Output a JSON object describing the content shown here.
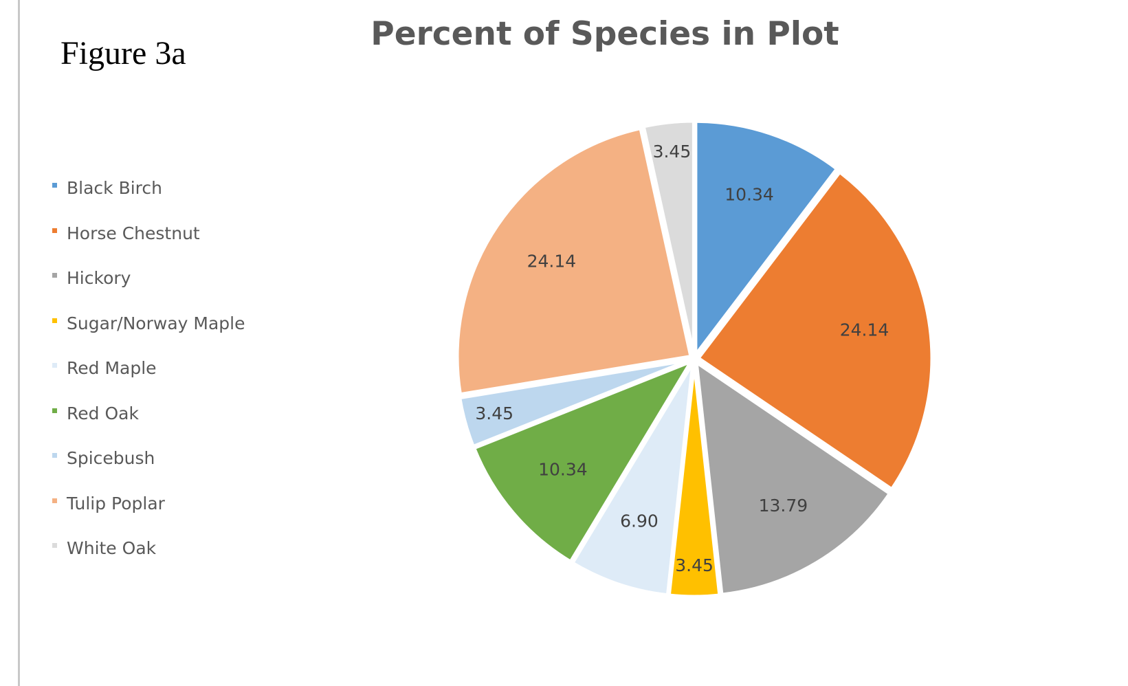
{
  "figure_label": "Figure 3a",
  "chart_data": {
    "type": "pie",
    "title": "Percent of Species in Plot",
    "legend_position": "left",
    "start_angle_deg": 0,
    "slices": [
      {
        "name": "Black Birch",
        "value": 10.34,
        "label": "10.34",
        "color": "#5b9bd5"
      },
      {
        "name": "Horse Chestnut",
        "value": 24.14,
        "label": "24.14",
        "color": "#ed7d31"
      },
      {
        "name": "Hickory",
        "value": 13.79,
        "label": "13.79",
        "color": "#a5a5a5"
      },
      {
        "name": "Sugar/Norway  Maple",
        "value": 3.45,
        "label": "3.45",
        "color": "#ffc000"
      },
      {
        "name": "Red Maple",
        "value": 6.9,
        "label": "6.90",
        "color": "#deebf7"
      },
      {
        "name": "Red Oak",
        "value": 10.34,
        "label": "10.34",
        "color": "#70ad47"
      },
      {
        "name": "Spicebush",
        "value": 3.45,
        "label": "3.45",
        "color": "#bdd7ee"
      },
      {
        "name": "Tulip Poplar",
        "value": 24.14,
        "label": "24.14",
        "color": "#f4b183"
      },
      {
        "name": "White Oak",
        "value": 3.45,
        "label": "3.45",
        "color": "#dbdbdb"
      }
    ]
  }
}
